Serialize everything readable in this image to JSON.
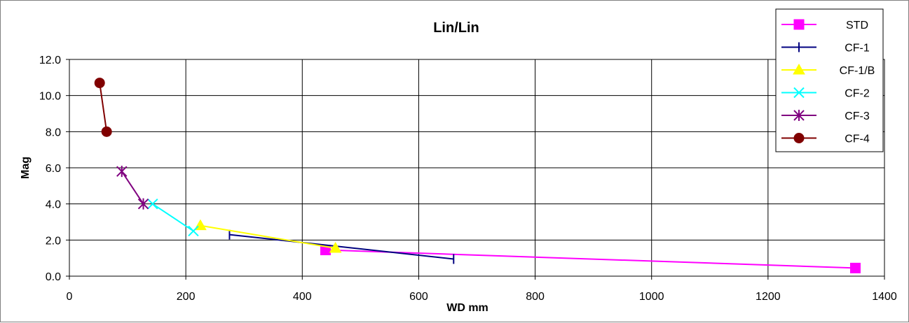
{
  "chart_data": {
    "type": "line",
    "title": "Lin/Lin",
    "xlabel": "WD mm",
    "ylabel": "Mag",
    "xlim": [
      0,
      1400
    ],
    "ylim": [
      0,
      12
    ],
    "x_ticks": [
      0,
      200,
      400,
      600,
      800,
      1000,
      1200,
      1400
    ],
    "y_ticks": [
      "0.0",
      "2.0",
      "4.0",
      "6.0",
      "8.0",
      "10.0",
      "12.0"
    ],
    "grid": true,
    "legend_position": "top-right",
    "series": [
      {
        "name": "STD",
        "color": "#ff00ff",
        "marker": "square",
        "x": [
          440,
          1350
        ],
        "y": [
          1.45,
          0.45
        ]
      },
      {
        "name": "CF-1",
        "color": "#000080",
        "marker": "bar",
        "x": [
          275,
          660
        ],
        "y": [
          2.3,
          0.95
        ]
      },
      {
        "name": "CF-1/B",
        "color": "#ffff00",
        "marker": "triangle",
        "x": [
          225,
          457
        ],
        "y": [
          2.8,
          1.55
        ]
      },
      {
        "name": "CF-2",
        "color": "#00ffff",
        "marker": "x",
        "x": [
          213,
          143
        ],
        "y": [
          2.5,
          4.0
        ]
      },
      {
        "name": "CF-3",
        "color": "#800080",
        "marker": "asterisk",
        "x": [
          90,
          127
        ],
        "y": [
          5.8,
          4.0
        ]
      },
      {
        "name": "CF-4",
        "color": "#800000",
        "marker": "circle",
        "x": [
          52,
          64
        ],
        "y": [
          10.7,
          8.0
        ]
      }
    ]
  }
}
